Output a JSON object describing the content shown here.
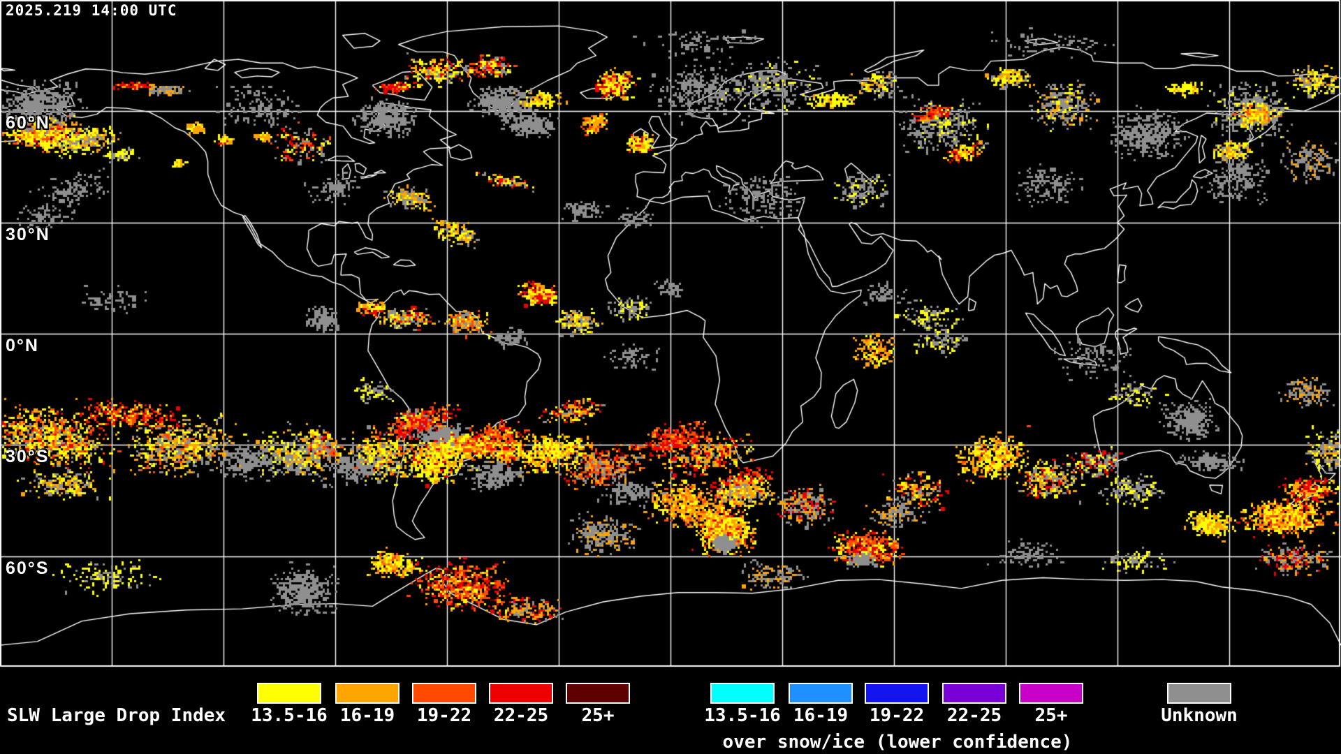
{
  "header": {
    "timestamp": "2025.219 14:00 UTC"
  },
  "map": {
    "latitude_labels": [
      {
        "text": "60°N",
        "lat": 60
      },
      {
        "text": "30°N",
        "lat": 30
      },
      {
        "text": "0°N",
        "lat": 0
      },
      {
        "text": "30°S",
        "lat": -30
      },
      {
        "text": "60°S",
        "lat": -60
      }
    ],
    "grid": {
      "lon_step_deg": 30,
      "lat_step_deg": 30
    },
    "palette": {
      "Y": "#ffff00",
      "O": "#ffa500",
      "OR": "#ff4a00",
      "R": "#ec0000",
      "DR": "#5e0000",
      "G": "#8f8f8f"
    },
    "clusters": [
      [
        60,
        190,
        70,
        30,
        0,
        520,
        "Y:4,O:3,OR:1,R:1"
      ],
      [
        55,
        150,
        75,
        45,
        0,
        430,
        "G:1"
      ],
      [
        120,
        200,
        60,
        25,
        -10,
        300,
        "Y:3,O:2,G:2"
      ],
      [
        190,
        121,
        32,
        6,
        0,
        80,
        "R:2,O:1"
      ],
      [
        235,
        128,
        45,
        8,
        0,
        80,
        "G:2,O:1"
      ],
      [
        280,
        181,
        18,
        10,
        0,
        60,
        "O:2,Y:1"
      ],
      [
        320,
        200,
        16,
        9,
        0,
        55,
        "Y:2,O:1,R:1"
      ],
      [
        375,
        195,
        16,
        8,
        0,
        55,
        "O:2,Y:1"
      ],
      [
        370,
        150,
        70,
        40,
        0,
        140,
        "G:1"
      ],
      [
        100,
        272,
        80,
        35,
        -20,
        130,
        "G:1"
      ],
      [
        170,
        221,
        30,
        12,
        0,
        70,
        "Y:2,G:1"
      ],
      [
        60,
        310,
        55,
        25,
        -10,
        70,
        "G:1"
      ],
      [
        255,
        233,
        12,
        7,
        0,
        35,
        "O:2,Y:1"
      ],
      [
        565,
        123,
        35,
        9,
        0,
        110,
        "R:2,OR:1,Y:1"
      ],
      [
        550,
        168,
        55,
        35,
        0,
        300,
        "G:1"
      ],
      [
        585,
        282,
        42,
        20,
        10,
        170,
        "Y:2,O:2,G:2"
      ],
      [
        720,
        145,
        62,
        28,
        5,
        330,
        "G:1"
      ],
      [
        757,
        177,
        48,
        22,
        5,
        260,
        "G:1"
      ],
      [
        770,
        142,
        40,
        15,
        0,
        120,
        "Y:2,O:2"
      ],
      [
        878,
        120,
        38,
        26,
        0,
        260,
        "Y:3,O:2,R:2"
      ],
      [
        850,
        176,
        28,
        16,
        -20,
        130,
        "O:2,OR:1,Y:1"
      ],
      [
        915,
        205,
        26,
        18,
        0,
        130,
        "Y:2,O:2,R:1"
      ],
      [
        725,
        258,
        48,
        12,
        10,
        100,
        "R:1,O:1,Y:1,G:1"
      ],
      [
        835,
        300,
        40,
        20,
        0,
        80,
        "G:1"
      ],
      [
        905,
        310,
        35,
        18,
        0,
        60,
        "G:1"
      ],
      [
        475,
        268,
        50,
        28,
        0,
        90,
        "G:1"
      ],
      [
        430,
        207,
        55,
        35,
        0,
        120,
        "OR:1,R:1,G:2,Y:1"
      ],
      [
        620,
        100,
        55,
        28,
        0,
        200,
        "Y:3,O:2,R:1,G:1"
      ],
      [
        700,
        95,
        45,
        20,
        0,
        150,
        "R:1,OR:1,Y:1,G:1"
      ],
      [
        1000,
        130,
        80,
        50,
        0,
        300,
        "G:1"
      ],
      [
        1100,
        120,
        90,
        48,
        0,
        280,
        "G:4,Y:1"
      ],
      [
        1190,
        142,
        42,
        14,
        0,
        120,
        "Y:4,O:1"
      ],
      [
        1255,
        120,
        40,
        25,
        0,
        130,
        "G:2,Y:1,O:1"
      ],
      [
        1345,
        180,
        75,
        50,
        0,
        320,
        "G:5,Y:1"
      ],
      [
        1378,
        218,
        32,
        16,
        -20,
        140,
        "Y:3,O:2,R:2"
      ],
      [
        1335,
        160,
        35,
        12,
        -15,
        90,
        "R:2,OR:2,O:1"
      ],
      [
        1443,
        110,
        42,
        20,
        0,
        140,
        "Y:3,O:2,G:1"
      ],
      [
        1520,
        150,
        60,
        45,
        0,
        260,
        "G:4,Y:1,O:1"
      ],
      [
        1640,
        190,
        70,
        45,
        0,
        350,
        "G:1"
      ],
      [
        1695,
        125,
        35,
        12,
        0,
        110,
        "Y:3,O:1"
      ],
      [
        1790,
        155,
        75,
        55,
        0,
        380,
        "G:4,Y:1"
      ],
      [
        1800,
        162,
        40,
        22,
        0,
        140,
        "Y:3,O:2,OR:1"
      ],
      [
        1760,
        215,
        35,
        20,
        0,
        140,
        "Y:3,O:2,G:1"
      ],
      [
        1770,
        255,
        60,
        40,
        0,
        200,
        "G:1"
      ],
      [
        1875,
        228,
        55,
        40,
        0,
        160,
        "G:3,O:1"
      ],
      [
        1880,
        115,
        45,
        28,
        0,
        180,
        "Y:3,O:2,G:2"
      ],
      [
        1000,
        60,
        120,
        28,
        0,
        80,
        "G:1"
      ],
      [
        1500,
        62,
        120,
        28,
        0,
        70,
        "G:1"
      ],
      [
        1230,
        270,
        50,
        30,
        0,
        120,
        "G:3,Y:1"
      ],
      [
        1085,
        282,
        80,
        48,
        0,
        170,
        "G:1"
      ],
      [
        1500,
        264,
        60,
        38,
        0,
        130,
        "G:1"
      ],
      [
        650,
        330,
        45,
        22,
        20,
        140,
        "Y:2,O:2,G:1"
      ],
      [
        580,
        455,
        50,
        20,
        0,
        190,
        "O:2,Y:2,R:1,G:2"
      ],
      [
        665,
        460,
        42,
        22,
        0,
        170,
        "O:2,Y:1,OR:1,G:1"
      ],
      [
        770,
        420,
        35,
        22,
        0,
        210,
        "R:2,O:2,Y:2"
      ],
      [
        825,
        460,
        40,
        25,
        0,
        150,
        "Y:2,O:2,G:2"
      ],
      [
        730,
        482,
        30,
        15,
        0,
        60,
        "G:1"
      ],
      [
        460,
        455,
        32,
        25,
        0,
        130,
        "G:1"
      ],
      [
        530,
        440,
        25,
        12,
        0,
        90,
        "O:2,Y:1,R:1"
      ],
      [
        900,
        440,
        45,
        25,
        0,
        90,
        "G:2,Y:1"
      ],
      [
        960,
        412,
        30,
        15,
        0,
        50,
        "G:1"
      ],
      [
        1330,
        450,
        60,
        30,
        0,
        90,
        "G:2,Y:1"
      ],
      [
        1265,
        420,
        40,
        20,
        0,
        60,
        "G:1"
      ],
      [
        160,
        430,
        80,
        28,
        0,
        60,
        "G:1"
      ],
      [
        905,
        510,
        50,
        25,
        0,
        60,
        "G:1"
      ],
      [
        630,
        625,
        55,
        30,
        0,
        330,
        "G:1"
      ],
      [
        672,
        638,
        45,
        22,
        0,
        290,
        "Y:4,O:3,OR:1"
      ],
      [
        730,
        648,
        40,
        20,
        0,
        160,
        "Y:2,O:2,R:1"
      ],
      [
        590,
        600,
        35,
        20,
        0,
        120,
        "G:2,Y:1"
      ],
      [
        460,
        640,
        32,
        26,
        0,
        170,
        "O:2,OR:1,R:1,G:2"
      ],
      [
        420,
        662,
        40,
        20,
        0,
        110,
        "G:1"
      ],
      [
        530,
        560,
        40,
        22,
        10,
        90,
        "G:1,Y:1"
      ],
      [
        1252,
        500,
        40,
        33,
        0,
        150,
        "O:3,Y:2,OR:1"
      ],
      [
        1345,
        487,
        50,
        28,
        0,
        80,
        "G:2,Y:1"
      ],
      [
        1700,
        600,
        48,
        33,
        0,
        260,
        "G:1"
      ],
      [
        1730,
        660,
        60,
        16,
        0,
        140,
        "G:1"
      ],
      [
        1560,
        512,
        70,
        40,
        0,
        90,
        "G:1"
      ],
      [
        1620,
        560,
        50,
        25,
        0,
        70,
        "G:1,Y:1"
      ],
      [
        1870,
        560,
        45,
        30,
        0,
        120,
        "G:2,O:1"
      ],
      [
        70,
        625,
        115,
        52,
        8,
        800,
        "Y:4,O:3,OR:2,R:1,G:2"
      ],
      [
        255,
        638,
        100,
        48,
        -8,
        620,
        "O:3,Y:3,OR:1,G:3"
      ],
      [
        185,
        592,
        95,
        26,
        5,
        260,
        "R:2,OR:2,O:1,Y:1"
      ],
      [
        90,
        692,
        80,
        28,
        0,
        200,
        "O:2,Y:2,G:2"
      ],
      [
        420,
        648,
        80,
        48,
        0,
        340,
        "Y:3,O:2,G:3"
      ],
      [
        545,
        652,
        70,
        46,
        0,
        430,
        "Y:4,O:2,OR:1,G:2"
      ],
      [
        625,
        658,
        55,
        42,
        -20,
        430,
        "Y:5,O:3,R:1"
      ],
      [
        600,
        602,
        80,
        26,
        -15,
        240,
        "R:3,OR:2,O:1"
      ],
      [
        702,
        628,
        75,
        30,
        -12,
        280,
        "OR:3,R:2,O:2,Y:1"
      ],
      [
        790,
        648,
        70,
        34,
        -15,
        430,
        "Y:4,O:3,OR:1"
      ],
      [
        862,
        668,
        74,
        36,
        -10,
        390,
        "O:3,OR:2,R:1,G:2,DR:1"
      ],
      [
        820,
        588,
        60,
        20,
        -10,
        130,
        "O:2,R:1,G:1,Y:1"
      ],
      [
        960,
        628,
        70,
        28,
        -15,
        260,
        "R:2,OR:2,O:1"
      ],
      [
        1010,
        652,
        80,
        33,
        -10,
        300,
        "O:3,R:2,Y:1,G:1"
      ],
      [
        1062,
        692,
        60,
        28,
        -20,
        250,
        "OR:2,R:2,Y:1"
      ],
      [
        1033,
        758,
        54,
        44,
        0,
        750,
        "Y:5,O:4,OR:2,R:1"
      ],
      [
        1035,
        776,
        22,
        15,
        0,
        170,
        "G:1"
      ],
      [
        1240,
        783,
        58,
        30,
        5,
        580,
        "R:3,OR:3,O:2,Y:2,DR:1"
      ],
      [
        1232,
        801,
        25,
        12,
        0,
        90,
        "G:1"
      ],
      [
        1152,
        722,
        55,
        33,
        0,
        230,
        "O:2,R:1,G:2"
      ],
      [
        1310,
        702,
        55,
        33,
        0,
        170,
        "O:2,R:1,G:1,Y:1"
      ],
      [
        1420,
        652,
        70,
        40,
        -10,
        390,
        "Y:4,O:3,OR:1"
      ],
      [
        1500,
        684,
        55,
        38,
        0,
        270,
        "Y:2,O:2,R:1,G:2"
      ],
      [
        1570,
        662,
        50,
        30,
        0,
        170,
        "G:2,Y:1,R:1"
      ],
      [
        1840,
        740,
        80,
        34,
        -5,
        650,
        "Y:4,O:3,OR:2,R:1"
      ],
      [
        1732,
        747,
        45,
        28,
        0,
        250,
        "Y:3,O:2"
      ],
      [
        1900,
        645,
        40,
        40,
        0,
        160,
        "G:2,Y:1,O:1"
      ],
      [
        1872,
        700,
        50,
        25,
        0,
        210,
        "O:2,R:2,Y:1"
      ],
      [
        350,
        658,
        60,
        33,
        0,
        220,
        "G:1"
      ],
      [
        502,
        670,
        50,
        31,
        0,
        180,
        "G:1"
      ],
      [
        705,
        680,
        60,
        26,
        0,
        180,
        "G:1"
      ],
      [
        905,
        702,
        55,
        24,
        0,
        150,
        "G:1"
      ],
      [
        1620,
        700,
        55,
        30,
        0,
        150,
        "G:1,Y:1"
      ],
      [
        432,
        845,
        62,
        42,
        0,
        400,
        "G:1"
      ],
      [
        660,
        838,
        90,
        44,
        5,
        560,
        "OR:3,R:3,O:2,Y:1,DR:1"
      ],
      [
        560,
        806,
        50,
        27,
        0,
        190,
        "Y:2,O:2,OR:1"
      ],
      [
        150,
        826,
        90,
        34,
        0,
        120,
        "Y:2,G:1"
      ],
      [
        760,
        872,
        70,
        24,
        0,
        160,
        "O:2,R:1,G:1"
      ],
      [
        1100,
        822,
        60,
        28,
        0,
        120,
        "G:2,O:1"
      ],
      [
        1470,
        792,
        60,
        24,
        0,
        90,
        "G:1"
      ],
      [
        1625,
        802,
        60,
        24,
        0,
        80,
        "G:1,Y:1"
      ],
      [
        982,
        722,
        70,
        38,
        10,
        470,
        "O:4,Y:2,OR:2"
      ],
      [
        1065,
        704,
        52,
        28,
        0,
        280,
        "O:2,G:1,Y:1"
      ],
      [
        862,
        764,
        60,
        38,
        0,
        230,
        "G:3,O:1"
      ],
      [
        1282,
        734,
        52,
        26,
        0,
        120,
        "O:1,G:2"
      ],
      [
        1850,
        800,
        70,
        30,
        0,
        180,
        "O:2,R:1,G:2"
      ]
    ]
  },
  "legend": {
    "title": "SLW Large Drop Index",
    "primary": [
      {
        "label": "13.5-16",
        "color": "#ffff00"
      },
      {
        "label": "16-19",
        "color": "#ffa500"
      },
      {
        "label": "19-22",
        "color": "#ff4a00"
      },
      {
        "label": "22-25",
        "color": "#ec0000"
      },
      {
        "label": "25+",
        "color": "#5e0000"
      }
    ],
    "snow_ice": {
      "caption": "over snow/ice (lower confidence)",
      "items": [
        {
          "label": "13.5-16",
          "color": "#00ffff"
        },
        {
          "label": "16-19",
          "color": "#1e90ff"
        },
        {
          "label": "19-22",
          "color": "#1414ee"
        },
        {
          "label": "22-25",
          "color": "#7a00d8"
        },
        {
          "label": "25+",
          "color": "#c800c8"
        }
      ]
    },
    "unknown": {
      "label": "Unknown",
      "color": "#8f8f8f"
    }
  }
}
